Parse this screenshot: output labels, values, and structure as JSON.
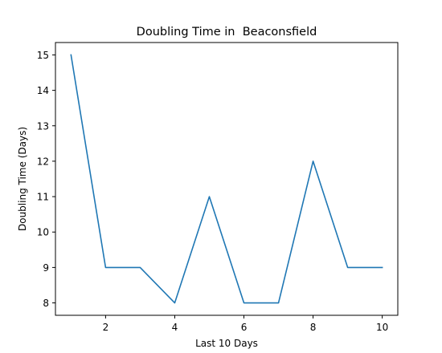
{
  "chart_data": {
    "type": "line",
    "title": "Doubling Time in  Beaconsfield",
    "xlabel": "Last 10 Days",
    "ylabel": "Doubling Time (Days)",
    "x": [
      1,
      2,
      3,
      4,
      5,
      6,
      7,
      8,
      9,
      10
    ],
    "series": [
      {
        "values": [
          15,
          9,
          9,
          8,
          11,
          8,
          8,
          12,
          9,
          9
        ],
        "color": "#1f77b4"
      }
    ],
    "xlim": [
      0.55,
      10.45
    ],
    "ylim": [
      7.65,
      15.35
    ],
    "xticks": [
      2,
      4,
      6,
      8,
      10
    ],
    "yticks": [
      8,
      9,
      10,
      11,
      12,
      13,
      14,
      15
    ],
    "grid": false,
    "legend": "none"
  }
}
